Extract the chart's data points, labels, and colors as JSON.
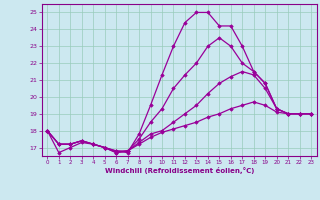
{
  "xlabel": "Windchill (Refroidissement éolien,°C)",
  "background_color": "#cce8f0",
  "line_color": "#990099",
  "grid_color": "#99ccbb",
  "xlim": [
    -0.5,
    23.5
  ],
  "ylim": [
    16.5,
    25.5
  ],
  "yticks": [
    17,
    18,
    19,
    20,
    21,
    22,
    23,
    24,
    25
  ],
  "xticks": [
    0,
    1,
    2,
    3,
    4,
    5,
    6,
    7,
    8,
    9,
    10,
    11,
    12,
    13,
    14,
    15,
    16,
    17,
    18,
    19,
    20,
    21,
    22,
    23
  ],
  "series": [
    [
      18.0,
      16.7,
      17.0,
      17.3,
      17.2,
      17.0,
      16.8,
      16.7,
      17.8,
      19.5,
      21.3,
      23.0,
      24.4,
      25.0,
      25.0,
      24.2,
      24.2,
      23.0,
      21.5,
      20.8,
      19.3,
      19.0,
      19.0,
      19.0
    ],
    [
      18.0,
      17.2,
      17.2,
      17.4,
      17.2,
      17.0,
      16.7,
      16.8,
      17.5,
      18.5,
      19.3,
      20.5,
      21.3,
      22.0,
      23.0,
      23.5,
      23.0,
      22.0,
      21.5,
      20.8,
      19.3,
      19.0,
      19.0,
      19.0
    ],
    [
      18.0,
      17.2,
      17.2,
      17.4,
      17.2,
      17.0,
      16.8,
      16.8,
      17.3,
      17.8,
      18.0,
      18.5,
      19.0,
      19.5,
      20.2,
      20.8,
      21.2,
      21.5,
      21.3,
      20.5,
      19.3,
      19.0,
      19.0,
      19.0
    ],
    [
      18.0,
      17.2,
      17.2,
      17.4,
      17.2,
      17.0,
      16.7,
      16.8,
      17.2,
      17.6,
      17.9,
      18.1,
      18.3,
      18.5,
      18.8,
      19.0,
      19.3,
      19.5,
      19.7,
      19.5,
      19.1,
      19.0,
      19.0,
      19.0
    ]
  ]
}
